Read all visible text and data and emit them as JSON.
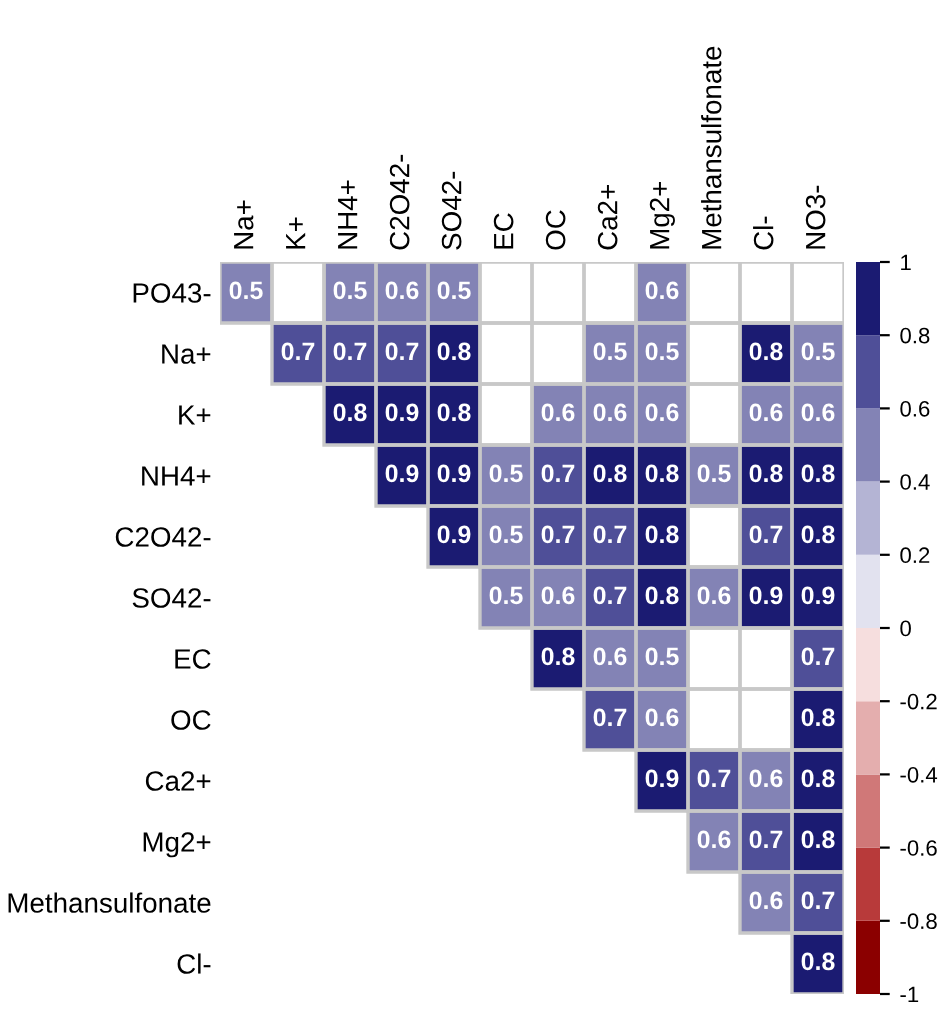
{
  "chart_data": {
    "type": "heatmap",
    "categories": [
      "Na+",
      "K+",
      "NH4+",
      "C2O42-",
      "SO42-",
      "EC",
      "OC",
      "Ca2+",
      "Mg2+",
      "Methansulfonate",
      "Cl-",
      "NO3-"
    ],
    "y_categories": [
      "PO43-",
      "Na+",
      "K+",
      "NH4+",
      "C2O42-",
      "SO42-",
      "EC",
      "OC",
      "Ca2+",
      "Mg2+",
      "Methansulfonate",
      "Cl-"
    ],
    "cells": [
      [
        0.5,
        null,
        0.5,
        0.6,
        0.5,
        null,
        null,
        null,
        0.6,
        null,
        null,
        null
      ],
      [
        null,
        0.7,
        0.7,
        0.7,
        0.8,
        null,
        null,
        0.5,
        0.5,
        null,
        0.8,
        0.5
      ],
      [
        null,
        null,
        0.8,
        0.9,
        0.8,
        null,
        0.6,
        0.6,
        0.6,
        null,
        0.6,
        0.6
      ],
      [
        null,
        null,
        null,
        0.9,
        0.9,
        0.5,
        0.7,
        0.8,
        0.8,
        0.5,
        0.8,
        0.8
      ],
      [
        null,
        null,
        null,
        null,
        0.9,
        0.5,
        0.7,
        0.7,
        0.8,
        null,
        0.7,
        0.8
      ],
      [
        null,
        null,
        null,
        null,
        null,
        0.5,
        0.6,
        0.7,
        0.8,
        0.6,
        0.9,
        0.9
      ],
      [
        null,
        null,
        null,
        null,
        null,
        null,
        0.8,
        0.6,
        0.5,
        null,
        null,
        0.7
      ],
      [
        null,
        null,
        null,
        null,
        null,
        null,
        null,
        0.7,
        0.6,
        null,
        null,
        0.8
      ],
      [
        null,
        null,
        null,
        null,
        null,
        null,
        null,
        null,
        0.9,
        0.7,
        0.6,
        0.8
      ],
      [
        null,
        null,
        null,
        null,
        null,
        null,
        null,
        null,
        null,
        0.6,
        0.7,
        0.8
      ],
      [
        null,
        null,
        null,
        null,
        null,
        null,
        null,
        null,
        null,
        null,
        0.6,
        0.7
      ],
      [
        null,
        null,
        null,
        null,
        null,
        null,
        null,
        null,
        null,
        null,
        null,
        0.8
      ]
    ],
    "clim": [
      -1,
      1
    ],
    "cticks": [
      1,
      0.8,
      0.6,
      0.4,
      0.2,
      0,
      -0.2,
      -0.4,
      -0.6,
      -0.8,
      -1
    ],
    "data_labels": true
  }
}
